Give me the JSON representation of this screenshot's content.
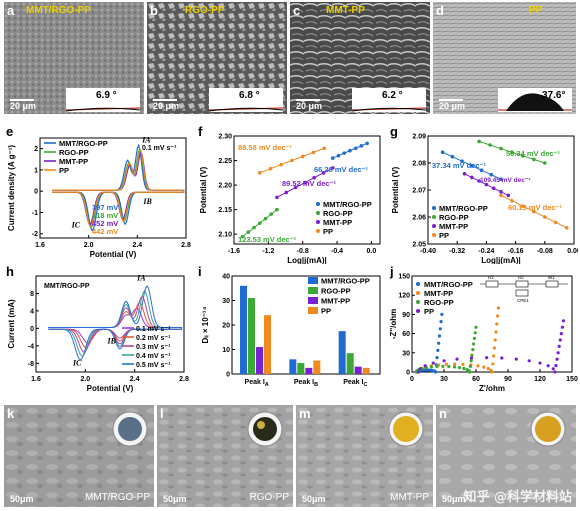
{
  "sem_top": [
    {
      "label": "a",
      "title": "MMT/RGO-PP",
      "scale": "20 μm",
      "angle": "6.9 °"
    },
    {
      "label": "b",
      "title": "RGO-PP",
      "scale": "20 μm",
      "angle": "6.8 °"
    },
    {
      "label": "c",
      "title": "MMT-PP",
      "scale": "20 μm",
      "angle": "6.2 °"
    },
    {
      "label": "d",
      "title": "PP",
      "scale": "20 μm",
      "angle": "37.6°"
    }
  ],
  "sem_bottom": [
    {
      "label": "k",
      "title": "MMT/RGO-PP",
      "scale": "50μm"
    },
    {
      "label": "l",
      "title": "RGO-PP",
      "scale": "50μm"
    },
    {
      "label": "m",
      "title": "MMT-PP",
      "scale": "50μm"
    },
    {
      "label": "n",
      "title": "",
      "scale": "50μm"
    }
  ],
  "watermark": "知乎 @科学材料站",
  "colors": {
    "mmt_rgo": "#1f6bd1",
    "rgo": "#3aa833",
    "mmt": "#7a1fd1",
    "pp": "#f08a1e"
  },
  "chart_e": {
    "label": "e",
    "type": "line",
    "sweep": "0.1 mV s⁻¹",
    "xlabel": "Potential (V)",
    "ylabel": "Current density (A g⁻¹)",
    "xticks": [
      "1.6",
      "2.0",
      "2.4",
      "2.8"
    ],
    "yticks": [
      "-2",
      "-1",
      "0",
      "1",
      "2"
    ],
    "xlim": [
      1.6,
      2.8
    ],
    "ylim": [
      -2.2,
      2.5
    ],
    "legend": [
      "MMT/RGO-PP",
      "RGO-PP",
      "MMT-PP",
      "PP"
    ],
    "peaks": {
      "A": "I",
      "A_sub": "A",
      "B": "I",
      "B_sub": "B",
      "C": "I",
      "C_sub": "C"
    },
    "gaps": [
      "397 mV",
      "418 mV",
      "452 mV",
      "442 mV"
    ]
  },
  "chart_f": {
    "label": "f",
    "type": "line",
    "xlabel": "Log|j(mA)|",
    "ylabel": "Potential (V)",
    "xticks": [
      "-1.6",
      "-1.2",
      "-0.8",
      "-0.4",
      "0.0"
    ],
    "yticks": [
      "2.10",
      "2.15",
      "2.20",
      "2.25",
      "2.30"
    ],
    "xlim": [
      -1.6,
      0.1
    ],
    "ylim": [
      2.08,
      2.3
    ],
    "legend": [
      "MMT/RGO-PP",
      "RGO-PP",
      "MMT-PP",
      "PP"
    ],
    "slopes": [
      "88.58 mV dec⁻¹",
      "66.28 mV dec⁻¹",
      "89.52 mV dec⁻¹",
      "123.53 mV dec⁻¹"
    ]
  },
  "chart_g": {
    "label": "g",
    "type": "line",
    "xlabel": "Log|j(mA)|",
    "ylabel": "Potential (V)",
    "xticks": [
      "-0.40",
      "-0.32",
      "-0.24",
      "-0.16",
      "-0.08",
      "0.00"
    ],
    "yticks": [
      "2.05",
      "2.06",
      "2.07",
      "2.08",
      "2.09"
    ],
    "xlim": [
      -0.4,
      0.0
    ],
    "ylim": [
      2.05,
      2.09
    ],
    "legend": [
      "MMT/RGO-PP",
      "RGO-PP",
      "MMT-PP",
      "PP"
    ],
    "slopes": [
      "50.34 mV dec⁻¹",
      "37.34 mV dec⁻¹",
      "109.45 mV dec⁻¹",
      "60.13 mV dec⁻¹"
    ]
  },
  "chart_h": {
    "label": "h",
    "type": "line",
    "title": "MMT/RGO-PP",
    "xlabel": "Potential (V)",
    "ylabel": "Current (mA)",
    "xticks": [
      "1.6",
      "2.0",
      "2.4",
      "2.8"
    ],
    "yticks": [
      "-8",
      "-4",
      "0",
      "4",
      "8"
    ],
    "xlim": [
      1.6,
      2.8
    ],
    "ylim": [
      -10,
      12
    ],
    "legend": [
      "0.1 mV s⁻¹",
      "0.2 mV s⁻¹",
      "0.3 mV s⁻¹",
      "0.4 mV s⁻¹",
      "0.5 mV s⁻¹"
    ],
    "legend_colors": [
      "#9a3fd8",
      "#e85a3a",
      "#b04a9a",
      "#3aa0a0",
      "#2a6fd8"
    ]
  },
  "chart_i": {
    "label": "i",
    "type": "bar",
    "ylabel": "Dₗᵢ × 10⁻¹⁴",
    "categories": [
      "Peak IA",
      "Peak IB",
      "Peak IC"
    ],
    "cat_labels": [
      {
        "t": "Peak I",
        "s": "A"
      },
      {
        "t": "Peak I",
        "s": "B"
      },
      {
        "t": "Peak I",
        "s": "C"
      }
    ],
    "yticks": [
      "0",
      "10",
      "20",
      "30",
      "40"
    ],
    "ylim": [
      0,
      40
    ],
    "series": [
      {
        "name": "MMT/RGO-PP",
        "values": [
          36,
          6,
          17.5
        ]
      },
      {
        "name": "RGO-PP",
        "values": [
          31,
          4.5,
          8.5
        ]
      },
      {
        "name": "MMT-PP",
        "values": [
          11,
          2.5,
          3
        ]
      },
      {
        "name": "PP",
        "values": [
          24,
          5.5,
          2.5
        ]
      }
    ]
  },
  "chart_j": {
    "label": "j",
    "type": "scatter",
    "xlabel": "Z'/ohm",
    "ylabel": "-Z''/ohm",
    "xticks": [
      "0",
      "30",
      "60",
      "90",
      "120",
      "150"
    ],
    "yticks": [
      "0",
      "30",
      "60",
      "90",
      "120",
      "150"
    ],
    "xlim": [
      0,
      150
    ],
    "ylim": [
      0,
      150
    ],
    "legend": [
      "MMT/RGO-PP",
      "MMT-PP",
      "RGO-PP",
      "PP"
    ],
    "legend_colors": [
      "#1f6bd1",
      "#f08a1e",
      "#3aa833",
      "#7a1fd1"
    ],
    "circuit": {
      "r1": "R1",
      "r2": "R2",
      "cpe": "CPE1",
      "w": "W1"
    }
  }
}
